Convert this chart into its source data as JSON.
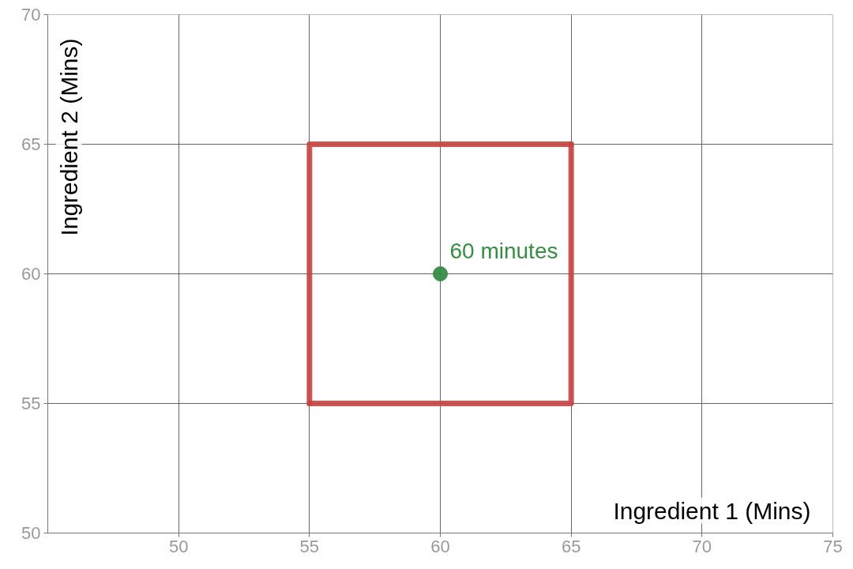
{
  "chart_data": {
    "type": "line",
    "xlabel": "Ingredient 1 (Mins)",
    "ylabel": "Ingredient 2 (Mins)",
    "series": [
      {
        "type": "line",
        "color": "#c74440",
        "x": [
          55,
          65,
          65
        ],
        "values": [
          55,
          55,
          65
        ]
      },
      {
        "color": "#c74440",
        "x": [
          65,
          55,
          55
        ],
        "values": [
          65,
          65,
          55
        ]
      },
      {
        "type": "scatter",
        "color": "#388c46",
        "marker": "circle",
        "x": [
          60
        ],
        "values": [
          60
        ]
      }
    ],
    "annotations": [
      {
        "text": "60 minutes",
        "x": 60,
        "y": 60
      }
    ],
    "xlim": [
      45,
      75
    ],
    "ylim": [
      50,
      70
    ],
    "xticks": [
      50,
      55,
      60,
      65,
      70,
      75
    ],
    "yticks": [
      50,
      55,
      60,
      65,
      70
    ],
    "grid": true
  }
}
